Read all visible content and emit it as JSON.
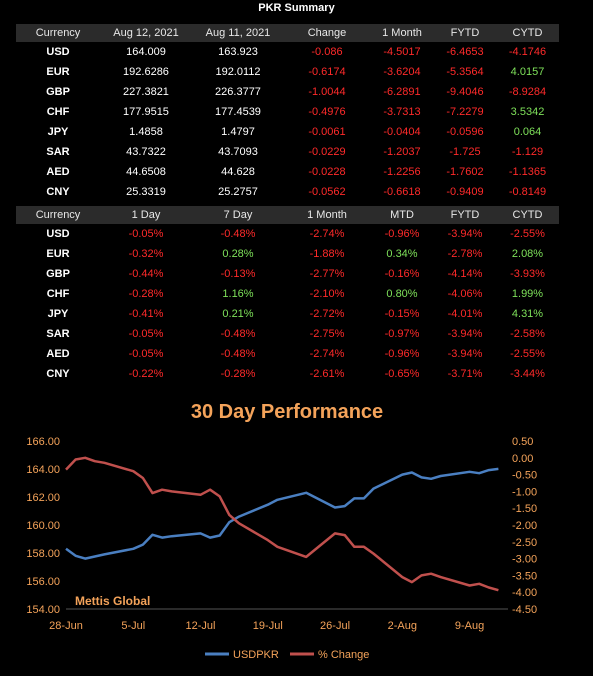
{
  "title": "PKR Summary",
  "table1": {
    "headers": [
      "Currency",
      "Aug 12, 2021",
      "Aug 11, 2021",
      "Change",
      "1 Month",
      "FYTD",
      "CYTD"
    ],
    "rows": [
      {
        "currency": "USD",
        "values": [
          "164.009",
          "163.923",
          "-0.086",
          "-4.5017",
          "-6.4653",
          "-4.1746"
        ]
      },
      {
        "currency": "EUR",
        "values": [
          "192.6286",
          "192.0112",
          "-0.6174",
          "-3.6204",
          "-5.3564",
          "4.0157"
        ]
      },
      {
        "currency": "GBP",
        "values": [
          "227.3821",
          "226.3777",
          "-1.0044",
          "-6.2891",
          "-9.4046",
          "-8.9284"
        ]
      },
      {
        "currency": "CHF",
        "values": [
          "177.9515",
          "177.4539",
          "-0.4976",
          "-3.7313",
          "-7.2279",
          "3.5342"
        ]
      },
      {
        "currency": "JPY",
        "values": [
          "1.4858",
          "1.4797",
          "-0.0061",
          "-0.0404",
          "-0.0596",
          "0.064"
        ]
      },
      {
        "currency": "SAR",
        "values": [
          "43.7322",
          "43.7093",
          "-0.0229",
          "-1.2037",
          "-1.725",
          "-1.129"
        ]
      },
      {
        "currency": "AED",
        "values": [
          "44.6508",
          "44.628",
          "-0.0228",
          "-1.2256",
          "-1.7602",
          "-1.1365"
        ]
      },
      {
        "currency": "CNY",
        "values": [
          "25.3319",
          "25.2757",
          "-0.0562",
          "-0.6618",
          "-0.9409",
          "-0.8149"
        ]
      }
    ]
  },
  "table2": {
    "headers": [
      "Currency",
      "1 Day",
      "7 Day",
      "1 Month",
      "MTD",
      "FYTD",
      "CYTD"
    ],
    "rows": [
      {
        "currency": "USD",
        "values": [
          "-0.05%",
          "-0.48%",
          "-2.74%",
          "-0.96%",
          "-3.94%",
          "-2.55%"
        ]
      },
      {
        "currency": "EUR",
        "values": [
          "-0.32%",
          "0.28%",
          "-1.88%",
          "0.34%",
          "-2.78%",
          "2.08%"
        ]
      },
      {
        "currency": "GBP",
        "values": [
          "-0.44%",
          "-0.13%",
          "-2.77%",
          "-0.16%",
          "-4.14%",
          "-3.93%"
        ]
      },
      {
        "currency": "CHF",
        "values": [
          "-0.28%",
          "1.16%",
          "-2.10%",
          "0.80%",
          "-4.06%",
          "1.99%"
        ]
      },
      {
        "currency": "JPY",
        "values": [
          "-0.41%",
          "0.21%",
          "-2.72%",
          "-0.15%",
          "-4.01%",
          "4.31%"
        ]
      },
      {
        "currency": "SAR",
        "values": [
          "-0.05%",
          "-0.48%",
          "-2.75%",
          "-0.97%",
          "-3.94%",
          "-2.58%"
        ]
      },
      {
        "currency": "AED",
        "values": [
          "-0.05%",
          "-0.48%",
          "-2.74%",
          "-0.96%",
          "-3.94%",
          "-2.55%"
        ]
      },
      {
        "currency": "CNY",
        "values": [
          "-0.22%",
          "-0.28%",
          "-2.61%",
          "-0.65%",
          "-3.71%",
          "-3.44%"
        ]
      }
    ]
  },
  "colors": {
    "negative": "#ff2a2a",
    "positive": "#7ee05a",
    "header_bg": "#2b2b2b",
    "accent_orange": "#f4a35a",
    "usdpkr_line": "#4a7fc1",
    "change_line": "#c0504d"
  },
  "chart_data": {
    "type": "line",
    "title": "30 Day Performance",
    "watermark": "Mettis Global",
    "x": [
      "2021-06-28",
      "2021-06-29",
      "2021-06-30",
      "2021-07-01",
      "2021-07-02",
      "2021-07-05",
      "2021-07-06",
      "2021-07-07",
      "2021-07-08",
      "2021-07-09",
      "2021-07-12",
      "2021-07-13",
      "2021-07-14",
      "2021-07-15",
      "2021-07-16",
      "2021-07-19",
      "2021-07-20",
      "2021-07-23",
      "2021-07-26",
      "2021-07-27",
      "2021-07-28",
      "2021-07-29",
      "2021-07-30",
      "2021-08-02",
      "2021-08-03",
      "2021-08-04",
      "2021-08-05",
      "2021-08-06",
      "2021-08-09",
      "2021-08-10",
      "2021-08-11",
      "2021-08-12"
    ],
    "x_tick_labels": [
      "28-Jun",
      "5-Jul",
      "12-Jul",
      "19-Jul",
      "26-Jul",
      "2-Aug",
      "9-Aug"
    ],
    "x_tick_dates": [
      "2021-06-28",
      "2021-07-05",
      "2021-07-12",
      "2021-07-19",
      "2021-07-26",
      "2021-08-02",
      "2021-08-09"
    ],
    "xlim": [
      "2021-06-28",
      "2021-08-13"
    ],
    "y_left": {
      "lim": [
        154,
        166
      ],
      "ticks": [
        "154.00",
        "156.00",
        "158.00",
        "160.00",
        "162.00",
        "164.00",
        "166.00"
      ]
    },
    "y_right": {
      "lim": [
        -4.5,
        0.5
      ],
      "ticks": [
        "-4.50",
        "-4.00",
        "-3.50",
        "-3.00",
        "-2.50",
        "-2.00",
        "-1.50",
        "-1.00",
        "-0.50",
        "0.00",
        "0.50"
      ]
    },
    "series": [
      {
        "name": "USDPKR",
        "axis": "left",
        "values": [
          158.3,
          157.8,
          157.6,
          157.75,
          157.9,
          158.3,
          158.6,
          159.3,
          159.1,
          159.2,
          159.4,
          159.1,
          159.25,
          160.2,
          160.6,
          161.45,
          161.8,
          162.3,
          161.25,
          161.35,
          161.9,
          161.9,
          162.6,
          163.6,
          163.75,
          163.4,
          163.3,
          163.5,
          163.8,
          163.7,
          163.92,
          164.01
        ]
      },
      {
        "name": "% Change",
        "axis": "right",
        "values": [
          -0.35,
          -0.05,
          0.0,
          -0.1,
          -0.15,
          -0.4,
          -0.6,
          -1.05,
          -0.95,
          -1.0,
          -1.1,
          -0.95,
          -1.15,
          -1.7,
          -1.95,
          -2.45,
          -2.65,
          -2.95,
          -2.25,
          -2.3,
          -2.65,
          -2.65,
          -2.85,
          -3.55,
          -3.7,
          -3.5,
          -3.45,
          -3.55,
          -3.8,
          -3.75,
          -3.86,
          -3.94
        ]
      }
    ],
    "legend_position": "bottom"
  }
}
